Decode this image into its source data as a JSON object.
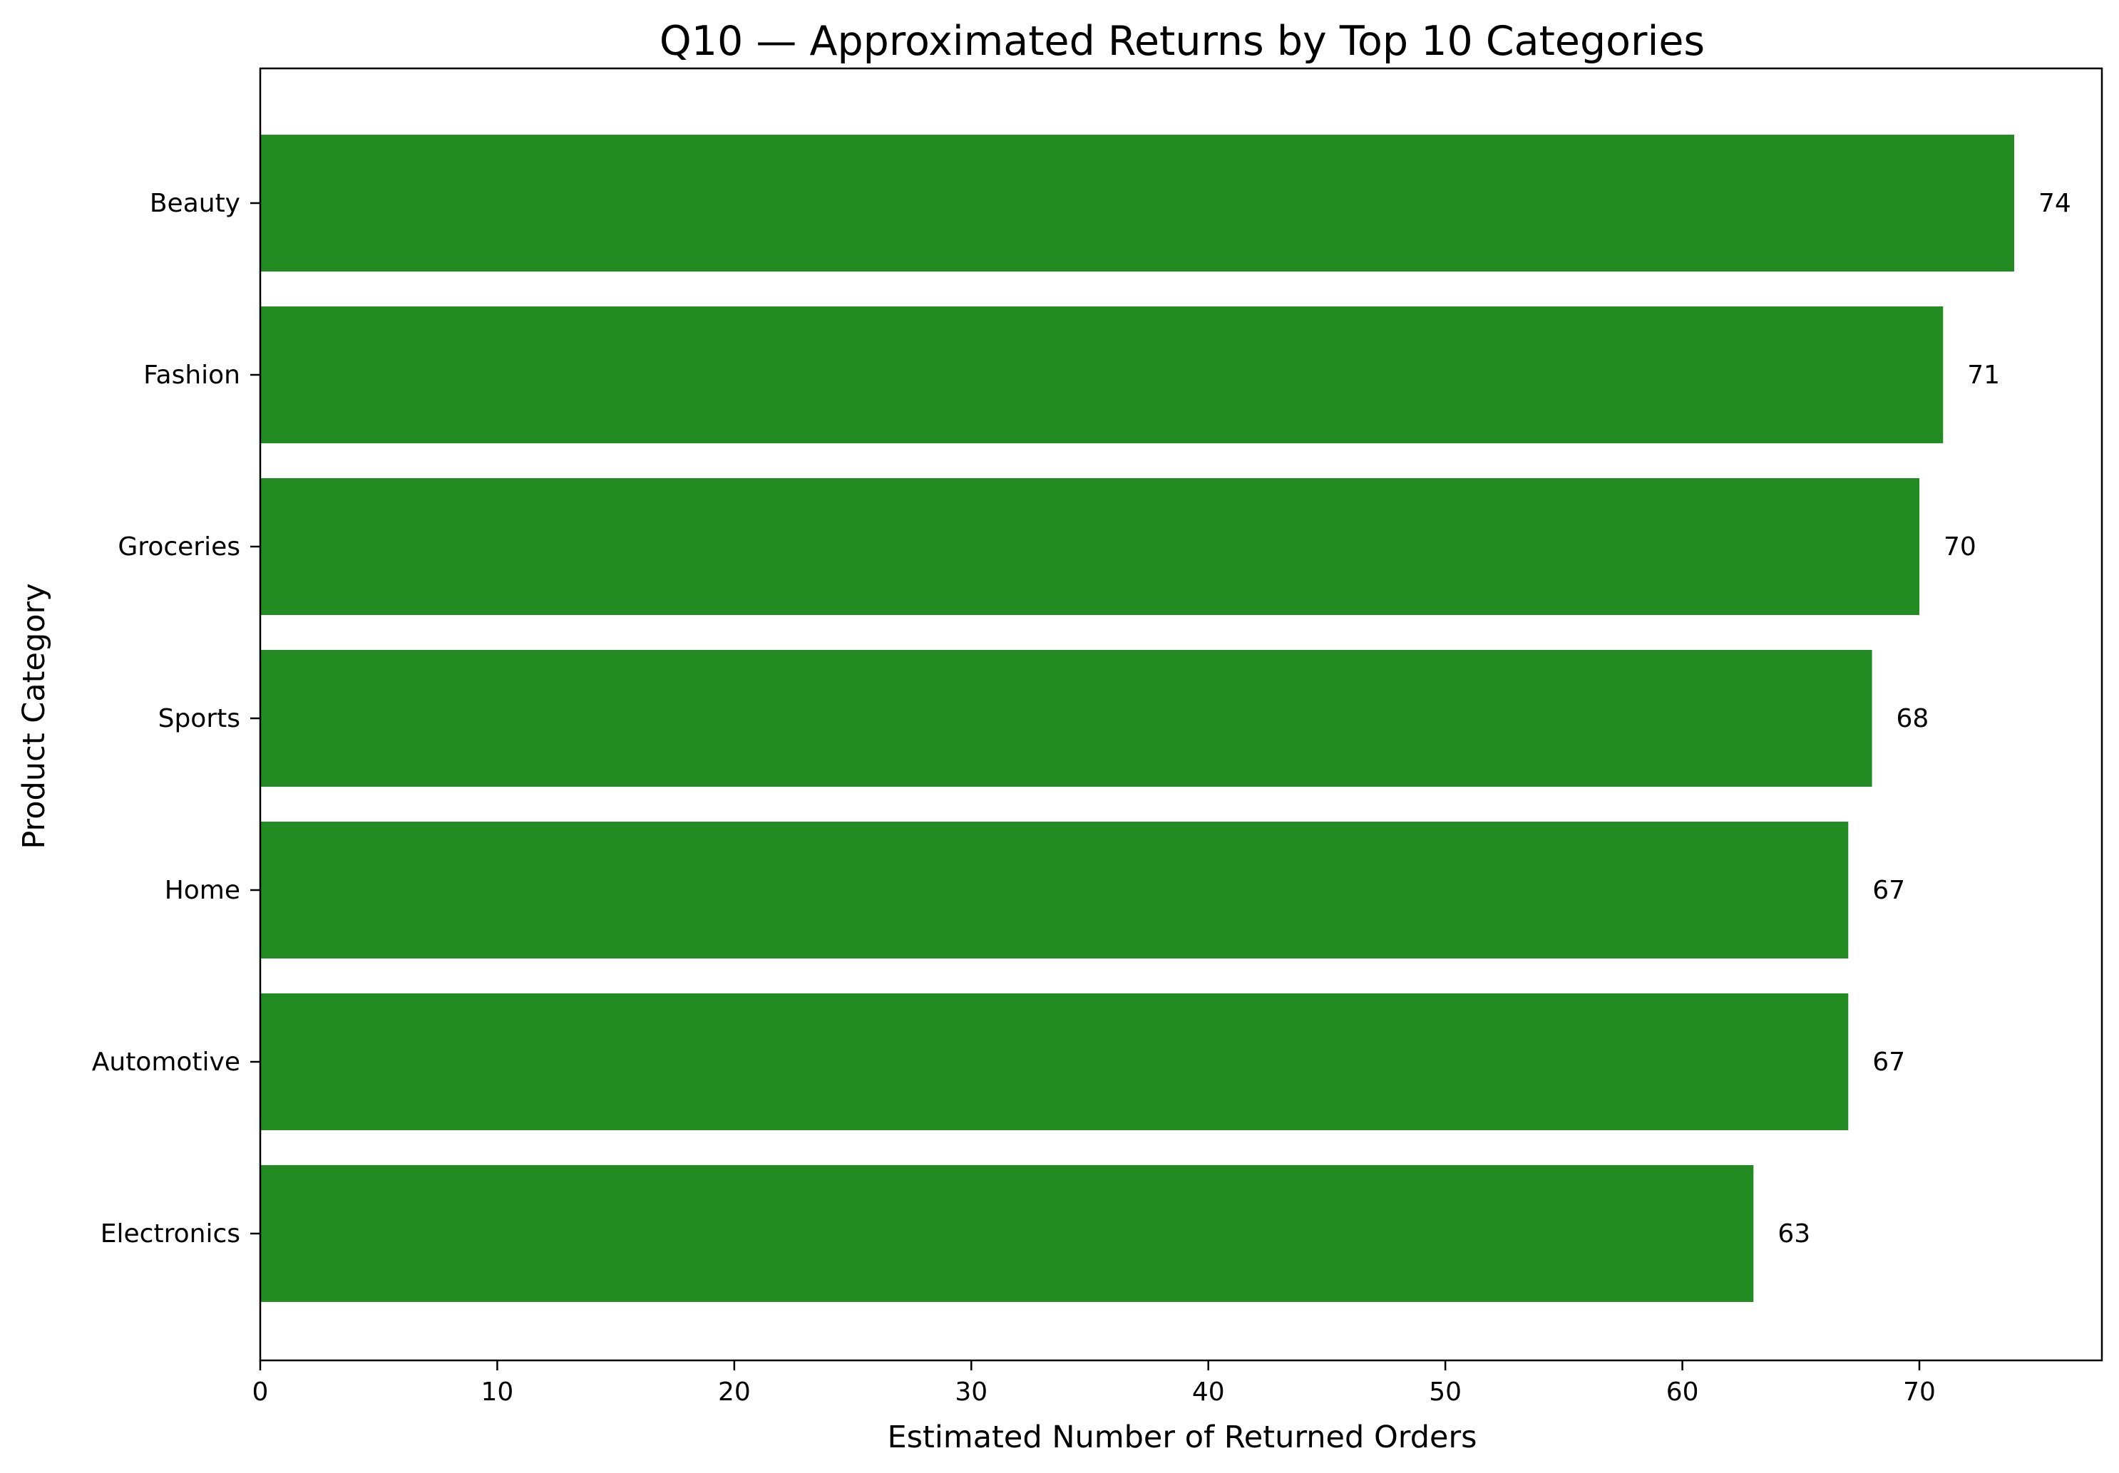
{
  "chart_data": {
    "type": "bar",
    "orientation": "horizontal",
    "title": "Q10 — Approximated Returns by Top 10 Categories",
    "xlabel": "Estimated Number of Returned Orders",
    "ylabel": "Product Category",
    "categories": [
      "Beauty",
      "Fashion",
      "Groceries",
      "Sports",
      "Home",
      "Automotive",
      "Electronics"
    ],
    "values": [
      74,
      71,
      70,
      68,
      67,
      67,
      63
    ],
    "data_labels": [
      "74",
      "71",
      "70",
      "68",
      "67",
      "67",
      "63"
    ],
    "xlim": [
      0,
      77.7
    ],
    "xticks": [
      0,
      10,
      20,
      30,
      40,
      50,
      60,
      70
    ],
    "xtick_labels": [
      "0",
      "10",
      "20",
      "30",
      "40",
      "50",
      "60",
      "70"
    ],
    "bar_color": "#228B22",
    "grid": false,
    "legend": "none"
  }
}
